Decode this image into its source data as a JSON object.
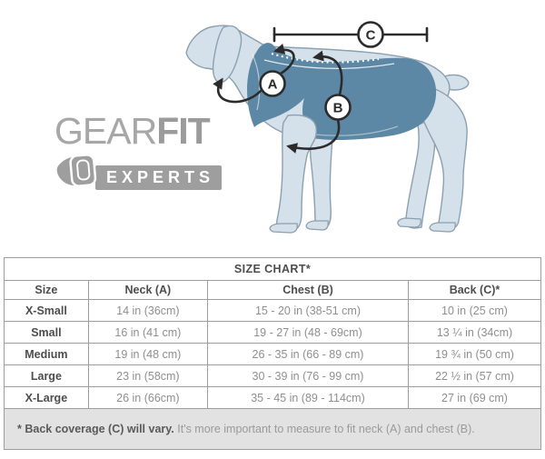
{
  "logo": {
    "gear": "GEAR",
    "fit": "FIT",
    "experts": "EXPERTS"
  },
  "diagram": {
    "label_a": "A",
    "label_b": "B",
    "label_c": "C",
    "meaning": {
      "A": "neck measurement",
      "B": "chest girth measurement",
      "C": "back length measurement"
    }
  },
  "size_chart": {
    "title": "SIZE CHART*",
    "columns": [
      "Size",
      "Neck (A)",
      "Chest (B)",
      "Back (C)*"
    ],
    "rows": [
      {
        "size": "X-Small",
        "neck": "14 in (36cm)",
        "chest": "15 - 20 in (38-51 cm)",
        "back": "10 in (25 cm)"
      },
      {
        "size": "Small",
        "neck": "16 in (41 cm)",
        "chest": "19 - 27 in (48 - 69cm)",
        "back": "13 ¼ in (34cm)"
      },
      {
        "size": "Medium",
        "neck": "19 in (48 cm)",
        "chest": "26 - 35 in (66 - 89 cm)",
        "back": "19 ¾ in (50 cm)"
      },
      {
        "size": "Large",
        "neck": "23 in (58cm)",
        "chest": "30 - 39 in (76 - 99 cm)",
        "back": "22 ½ in (57 cm)"
      },
      {
        "size": "X-Large",
        "neck": "26 in (66cm)",
        "chest": "35 - 45 in (89 - 114cm)",
        "back": "27 in (69 cm)"
      }
    ],
    "footnote_bold": "* Back coverage (C) will vary.",
    "footnote_rest": " It's more important to measure to fit neck (A) and chest (B)."
  },
  "colors": {
    "vest_blue": "#5d88a5",
    "dog_body": "#d4e0ea",
    "dog_outline": "#8ba0b0",
    "logo_gray": "#9e9e9e",
    "table_border": "#9d9d9d",
    "footnote_bg": "#e2e2e2",
    "annotation_ink": "#2b2b2b"
  }
}
